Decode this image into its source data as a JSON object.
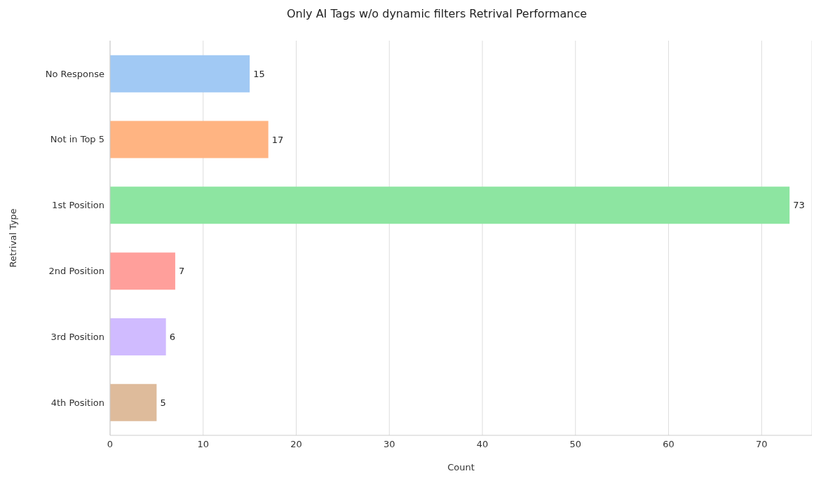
{
  "chart_data": {
    "type": "bar",
    "orientation": "horizontal",
    "title": "Only AI Tags w/o dynamic filters Retrival Performance",
    "xlabel": "Count",
    "ylabel": "Retrival Type",
    "categories": [
      "No Response",
      "Not in Top 5",
      "1st Position",
      "2nd Position",
      "3rd Position",
      "4th Position"
    ],
    "values": [
      15,
      17,
      73,
      7,
      6,
      5
    ],
    "colors": [
      "#a1c9f4",
      "#ffb482",
      "#8de5a1",
      "#ff9f9b",
      "#d0bbff",
      "#debb9b"
    ],
    "xlim": [
      0,
      75.4
    ],
    "xticks": [
      0,
      10,
      20,
      30,
      40,
      50,
      60,
      70
    ],
    "grid": "x",
    "data_labels": true
  }
}
